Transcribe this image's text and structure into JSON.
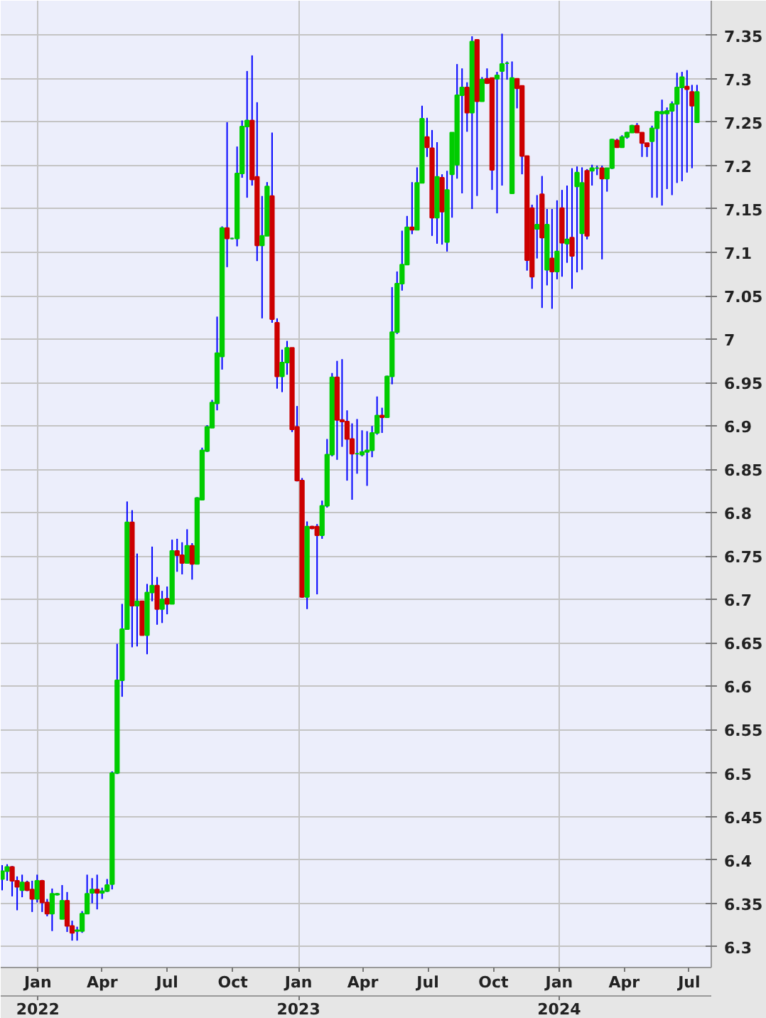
{
  "chart_data": {
    "type": "candlestick",
    "x": [
      "2021-11-12",
      "2021-11-19",
      "2021-11-26",
      "2021-12-03",
      "2021-12-10",
      "2021-12-17",
      "2021-12-24",
      "2021-12-31",
      "2022-01-07",
      "2022-01-14",
      "2022-01-21",
      "2022-01-28",
      "2022-02-04",
      "2022-02-11",
      "2022-02-18",
      "2022-02-25",
      "2022-03-04",
      "2022-03-11",
      "2022-03-18",
      "2022-03-25",
      "2022-04-01",
      "2022-04-08",
      "2022-04-15",
      "2022-04-22",
      "2022-04-29",
      "2022-05-06",
      "2022-05-13",
      "2022-05-20",
      "2022-05-27",
      "2022-06-03",
      "2022-06-10",
      "2022-06-17",
      "2022-06-24",
      "2022-07-01",
      "2022-07-08",
      "2022-07-15",
      "2022-07-22",
      "2022-07-29",
      "2022-08-05",
      "2022-08-12",
      "2022-08-19",
      "2022-08-26",
      "2022-09-02",
      "2022-09-09",
      "2022-09-16",
      "2022-09-23",
      "2022-09-30",
      "2022-10-07",
      "2022-10-14",
      "2022-10-21",
      "2022-10-28",
      "2022-11-04",
      "2022-11-11",
      "2022-11-18",
      "2022-11-25",
      "2022-12-02",
      "2022-12-09",
      "2022-12-16",
      "2022-12-23",
      "2022-12-30",
      "2023-01-06",
      "2023-01-13",
      "2023-01-20",
      "2023-01-27",
      "2023-02-03",
      "2023-02-10",
      "2023-02-17",
      "2023-02-24",
      "2023-03-03",
      "2023-03-10",
      "2023-03-17",
      "2023-03-24",
      "2023-03-31",
      "2023-04-07",
      "2023-04-14",
      "2023-04-21",
      "2023-04-28",
      "2023-05-05",
      "2023-05-12",
      "2023-05-19",
      "2023-05-26",
      "2023-06-02",
      "2023-06-09",
      "2023-06-16",
      "2023-06-23",
      "2023-06-30",
      "2023-07-07",
      "2023-07-14",
      "2023-07-21",
      "2023-07-28",
      "2023-08-04",
      "2023-08-11",
      "2023-08-18",
      "2023-08-25",
      "2023-09-01",
      "2023-09-08",
      "2023-09-15",
      "2023-09-22",
      "2023-09-29",
      "2023-10-06",
      "2023-10-13",
      "2023-10-20",
      "2023-10-27",
      "2023-11-03",
      "2023-11-10",
      "2023-11-17",
      "2023-11-24",
      "2023-12-01",
      "2023-12-08",
      "2023-12-15",
      "2023-12-22",
      "2023-12-29",
      "2024-01-05",
      "2024-01-12",
      "2024-01-19",
      "2024-01-26",
      "2024-02-02",
      "2024-02-09",
      "2024-02-16",
      "2024-02-23",
      "2024-03-01",
      "2024-03-08",
      "2024-03-15",
      "2024-03-22",
      "2024-03-29",
      "2024-04-05",
      "2024-04-12",
      "2024-04-19",
      "2024-04-26",
      "2024-05-03",
      "2024-05-10",
      "2024-05-17",
      "2024-05-24",
      "2024-05-31",
      "2024-06-07",
      "2024-06-14",
      "2024-06-21",
      "2024-06-28",
      "2024-07-05",
      "2024-07-12"
    ],
    "ohlc": [
      [
        6.378,
        6.394,
        6.365,
        6.387
      ],
      [
        6.387,
        6.395,
        6.376,
        6.392
      ],
      [
        6.392,
        6.393,
        6.358,
        6.376
      ],
      [
        6.376,
        6.381,
        6.342,
        6.369
      ],
      [
        6.365,
        6.383,
        6.357,
        6.374
      ],
      [
        6.374,
        6.376,
        6.364,
        6.365
      ],
      [
        6.366,
        6.376,
        6.34,
        6.355
      ],
      [
        6.355,
        6.383,
        6.351,
        6.376
      ],
      [
        6.376,
        6.377,
        6.34,
        6.351
      ],
      [
        6.351,
        6.355,
        6.335,
        6.338
      ],
      [
        6.338,
        6.367,
        6.318,
        6.361
      ],
      [
        6.36,
        6.362,
        6.359,
        6.361
      ],
      [
        6.332,
        6.371,
        6.332,
        6.353
      ],
      [
        6.353,
        6.363,
        6.317,
        6.324
      ],
      [
        6.324,
        6.33,
        6.307,
        6.316
      ],
      [
        6.318,
        6.323,
        6.307,
        6.319
      ],
      [
        6.318,
        6.341,
        6.316,
        6.338
      ],
      [
        6.338,
        6.383,
        6.338,
        6.361
      ],
      [
        6.362,
        6.379,
        6.35,
        6.366
      ],
      [
        6.366,
        6.383,
        6.343,
        6.362
      ],
      [
        6.362,
        6.368,
        6.355,
        6.364
      ],
      [
        6.364,
        6.378,
        6.363,
        6.371
      ],
      [
        6.372,
        6.502,
        6.366,
        6.5
      ],
      [
        6.5,
        6.649,
        6.499,
        6.607
      ],
      [
        6.607,
        6.695,
        6.588,
        6.666
      ],
      [
        6.666,
        6.813,
        6.666,
        6.789
      ],
      [
        6.789,
        6.803,
        6.645,
        6.693
      ],
      [
        6.693,
        6.753,
        6.646,
        6.698
      ],
      [
        6.698,
        6.698,
        6.659,
        6.659
      ],
      [
        6.659,
        6.718,
        6.637,
        6.708
      ],
      [
        6.708,
        6.761,
        6.698,
        6.716
      ],
      [
        6.716,
        6.726,
        6.671,
        6.689
      ],
      [
        6.689,
        6.71,
        6.673,
        6.7
      ],
      [
        6.701,
        6.715,
        6.683,
        6.695
      ],
      [
        6.695,
        6.769,
        6.695,
        6.756
      ],
      [
        6.756,
        6.77,
        6.732,
        6.751
      ],
      [
        6.751,
        6.766,
        6.729,
        6.742
      ],
      [
        6.742,
        6.781,
        6.742,
        6.762
      ],
      [
        6.762,
        6.765,
        6.723,
        6.741
      ],
      [
        6.741,
        6.818,
        6.741,
        6.817
      ],
      [
        6.815,
        6.875,
        6.815,
        6.872
      ],
      [
        6.871,
        6.901,
        6.87,
        6.899
      ],
      [
        6.898,
        6.93,
        6.898,
        6.927
      ],
      [
        6.926,
        7.026,
        6.918,
        6.984
      ],
      [
        6.98,
        7.13,
        6.965,
        7.128
      ],
      [
        7.128,
        7.25,
        7.083,
        7.116
      ],
      [
        7.116,
        7.117,
        7.115,
        7.116
      ],
      [
        7.116,
        7.222,
        7.107,
        7.191
      ],
      [
        7.191,
        7.252,
        7.186,
        7.245
      ],
      [
        7.245,
        7.309,
        7.163,
        7.252
      ],
      [
        7.252,
        7.327,
        7.177,
        7.184
      ],
      [
        7.187,
        7.273,
        7.09,
        7.108
      ],
      [
        7.108,
        7.165,
        7.024,
        7.119
      ],
      [
        7.119,
        7.181,
        7.119,
        7.176
      ],
      [
        7.165,
        7.238,
        7.019,
        7.023
      ],
      [
        7.019,
        7.024,
        6.943,
        6.957
      ],
      [
        6.957,
        6.988,
        6.939,
        6.973
      ],
      [
        6.973,
        6.998,
        6.959,
        6.99
      ],
      [
        6.99,
        6.99,
        6.893,
        6.896
      ],
      [
        6.899,
        6.923,
        6.836,
        6.837
      ],
      [
        6.837,
        6.84,
        6.702,
        6.703
      ],
      [
        6.703,
        6.79,
        6.689,
        6.784
      ],
      [
        6.784,
        6.785,
        6.781,
        6.782
      ],
      [
        6.784,
        6.787,
        6.706,
        6.774
      ],
      [
        6.774,
        6.814,
        6.77,
        6.808
      ],
      [
        6.808,
        6.885,
        6.806,
        6.867
      ],
      [
        6.867,
        6.961,
        6.865,
        6.956
      ],
      [
        6.956,
        6.975,
        6.861,
        6.907
      ],
      [
        6.907,
        6.977,
        6.876,
        6.905
      ],
      [
        6.905,
        6.918,
        6.837,
        6.885
      ],
      [
        6.885,
        6.903,
        6.815,
        6.868
      ],
      [
        6.868,
        6.908,
        6.845,
        6.868
      ],
      [
        6.867,
        6.895,
        6.865,
        6.87
      ],
      [
        6.87,
        6.894,
        6.831,
        6.872
      ],
      [
        6.872,
        6.9,
        6.864,
        6.892
      ],
      [
        6.892,
        6.934,
        6.89,
        6.912
      ],
      [
        6.912,
        6.921,
        6.892,
        6.91
      ],
      [
        6.91,
        6.958,
        6.91,
        6.957
      ],
      [
        6.957,
        7.06,
        6.948,
        7.008
      ],
      [
        7.008,
        7.078,
        7.006,
        7.064
      ],
      [
        7.064,
        7.125,
        7.056,
        7.086
      ],
      [
        7.086,
        7.142,
        7.086,
        7.129
      ],
      [
        7.129,
        7.181,
        7.121,
        7.126
      ],
      [
        7.126,
        7.198,
        7.126,
        7.18
      ],
      [
        7.18,
        7.269,
        7.18,
        7.254
      ],
      [
        7.233,
        7.255,
        7.21,
        7.221
      ],
      [
        7.22,
        7.241,
        7.119,
        7.14
      ],
      [
        7.14,
        7.227,
        7.11,
        7.187
      ],
      [
        7.186,
        7.19,
        7.109,
        7.147
      ],
      [
        7.112,
        7.194,
        7.101,
        7.172
      ],
      [
        7.19,
        7.238,
        7.14,
        7.238
      ],
      [
        7.201,
        7.317,
        7.185,
        7.281
      ],
      [
        7.281,
        7.312,
        7.168,
        7.29
      ],
      [
        7.29,
        7.296,
        7.239,
        7.261
      ],
      [
        7.261,
        7.349,
        7.15,
        7.343
      ],
      [
        7.345,
        7.345,
        7.165,
        7.274
      ],
      [
        7.274,
        7.302,
        7.274,
        7.299
      ],
      [
        7.3,
        7.312,
        7.294,
        7.295
      ],
      [
        7.301,
        7.301,
        7.172,
        7.195
      ],
      [
        7.3,
        7.308,
        7.145,
        7.304
      ],
      [
        7.309,
        7.352,
        7.177,
        7.317
      ],
      [
        7.318,
        7.32,
        7.299,
        7.318
      ],
      [
        7.168,
        7.32,
        7.168,
        7.301
      ],
      [
        7.3,
        7.3,
        7.266,
        7.289
      ],
      [
        7.292,
        7.292,
        7.19,
        7.211
      ],
      [
        7.211,
        7.211,
        7.079,
        7.091
      ],
      [
        7.151,
        7.155,
        7.058,
        7.072
      ],
      [
        7.127,
        7.166,
        7.093,
        7.132
      ],
      [
        7.167,
        7.188,
        7.036,
        7.117
      ],
      [
        7.08,
        7.15,
        7.062,
        7.132
      ],
      [
        7.093,
        7.15,
        7.035,
        7.078
      ],
      [
        7.078,
        7.16,
        7.069,
        7.101
      ],
      [
        7.151,
        7.172,
        7.072,
        7.111
      ],
      [
        7.11,
        7.177,
        7.088,
        7.115
      ],
      [
        7.117,
        7.197,
        7.058,
        7.096
      ],
      [
        7.176,
        7.199,
        7.077,
        7.192
      ],
      [
        7.122,
        7.198,
        7.08,
        7.18
      ],
      [
        7.194,
        7.196,
        7.115,
        7.119
      ],
      [
        7.194,
        7.201,
        7.177,
        7.197
      ],
      [
        7.197,
        7.2,
        7.189,
        7.197
      ],
      [
        7.197,
        7.2,
        7.092,
        7.185
      ],
      [
        7.185,
        7.197,
        7.17,
        7.197
      ],
      [
        7.197,
        7.231,
        7.196,
        7.23
      ],
      [
        7.229,
        7.231,
        7.221,
        7.221
      ],
      [
        7.221,
        7.235,
        7.221,
        7.233
      ],
      [
        7.233,
        7.239,
        7.231,
        7.238
      ],
      [
        7.238,
        7.247,
        7.238,
        7.246
      ],
      [
        7.246,
        7.249,
        7.238,
        7.238
      ],
      [
        7.238,
        7.238,
        7.21,
        7.226
      ],
      [
        7.226,
        7.226,
        7.21,
        7.222
      ],
      [
        7.228,
        7.246,
        7.163,
        7.243
      ],
      [
        7.243,
        7.263,
        7.163,
        7.262
      ],
      [
        7.26,
        7.276,
        7.154,
        7.262
      ],
      [
        7.26,
        7.267,
        7.173,
        7.263
      ],
      [
        7.263,
        7.274,
        7.166,
        7.271
      ],
      [
        7.271,
        7.307,
        7.18,
        7.29
      ],
      [
        7.29,
        7.308,
        7.182,
        7.302
      ],
      [
        7.291,
        7.31,
        7.192,
        7.288
      ],
      [
        7.285,
        7.293,
        7.197,
        7.269
      ],
      [
        7.25,
        7.293,
        7.25,
        7.285
      ]
    ],
    "colors": [
      "#00cc00",
      "#00cc00",
      "#cc0000",
      "#cc0000",
      "#00cc00",
      "#cc0000",
      "#cc0000",
      "#00cc00",
      "#cc0000",
      "#cc0000",
      "#00cc00",
      "#00cc00",
      "#00cc00",
      "#cc0000",
      "#cc0000",
      "#00cc00",
      "#00cc00",
      "#00cc00",
      "#00cc00",
      "#cc0000",
      "#00cc00",
      "#00cc00",
      "#00cc00",
      "#00cc00",
      "#00cc00",
      "#00cc00",
      "#cc0000",
      "#00cc00",
      "#cc0000",
      "#00cc00",
      "#00cc00",
      "#cc0000",
      "#00cc00",
      "#cc0000",
      "#00cc00",
      "#cc0000",
      "#cc0000",
      "#00cc00",
      "#cc0000",
      "#00cc00",
      "#00cc00",
      "#00cc00",
      "#00cc00",
      "#00cc00",
      "#00cc00",
      "#cc0000",
      "#00cc00",
      "#00cc00",
      "#00cc00",
      "#00cc00",
      "#cc0000",
      "#cc0000",
      "#00cc00",
      "#00cc00",
      "#cc0000",
      "#cc0000",
      "#00cc00",
      "#00cc00",
      "#cc0000",
      "#cc0000",
      "#cc0000",
      "#00cc00",
      "#cc0000",
      "#cc0000",
      "#00cc00",
      "#00cc00",
      "#00cc00",
      "#cc0000",
      "#cc0000",
      "#cc0000",
      "#cc0000",
      "#00cc00",
      "#00cc00",
      "#00cc00",
      "#00cc00",
      "#00cc00",
      "#cc0000",
      "#00cc00",
      "#00cc00",
      "#00cc00",
      "#00cc00",
      "#00cc00",
      "#cc0000",
      "#00cc00",
      "#00cc00",
      "#cc0000",
      "#cc0000",
      "#00cc00",
      "#cc0000",
      "#00cc00",
      "#00cc00",
      "#00cc00",
      "#00cc00",
      "#cc0000",
      "#00cc00",
      "#cc0000",
      "#00cc00",
      "#cc0000",
      "#cc0000",
      "#00cc00",
      "#00cc00",
      "#00cc00",
      "#00cc00",
      "#cc0000",
      "#cc0000",
      "#cc0000",
      "#cc0000",
      "#00cc00",
      "#cc0000",
      "#00cc00",
      "#cc0000",
      "#00cc00",
      "#cc0000",
      "#00cc00",
      "#cc0000",
      "#00cc00",
      "#00cc00",
      "#cc0000",
      "#00cc00",
      "#00cc00",
      "#cc0000",
      "#00cc00",
      "#00cc00",
      "#cc0000",
      "#00cc00",
      "#00cc00",
      "#00cc00",
      "#cc0000",
      "#cc0000",
      "#cc0000",
      "#00cc00",
      "#00cc00",
      "#00cc00",
      "#00cc00",
      "#00cc00",
      "#00cc00",
      "#00cc00",
      "#cc0000",
      "#cc0000",
      "#00cc00"
    ],
    "xlim": [
      "2021-11-10",
      "2024-08-01"
    ],
    "xticks": [
      {
        "value": "2022-01-01",
        "label": "Jan"
      },
      {
        "value": "2022-04-01",
        "label": "Apr"
      },
      {
        "value": "2022-07-01",
        "label": "Jul"
      },
      {
        "value": "2022-10-01",
        "label": "Oct"
      },
      {
        "value": "2023-01-01",
        "label": "Jan"
      },
      {
        "value": "2023-04-01",
        "label": "Apr"
      },
      {
        "value": "2023-07-01",
        "label": "Jul"
      },
      {
        "value": "2023-10-01",
        "label": "Oct"
      },
      {
        "value": "2024-01-01",
        "label": "Jan"
      },
      {
        "value": "2024-04-01",
        "label": "Apr"
      },
      {
        "value": "2024-07-01",
        "label": "Jul"
      }
    ],
    "x2lim": [
      "2021-11-10",
      "2024-08-01"
    ],
    "x2ticks": [
      {
        "value": "2022-01-01",
        "label": "2022"
      },
      {
        "value": "2023-01-01",
        "label": "2023"
      },
      {
        "value": "2024-01-01",
        "label": "2024"
      }
    ],
    "ylim": [
      6.276,
      7.39
    ],
    "yticks": [
      6.3,
      6.35,
      6.4,
      6.45,
      6.5,
      6.55,
      6.6,
      6.65,
      6.7,
      6.75,
      6.8,
      6.85,
      6.9,
      6.95,
      7,
      7.05,
      7.1,
      7.15,
      7.2,
      7.25,
      7.3,
      7.35
    ],
    "grid": true
  }
}
